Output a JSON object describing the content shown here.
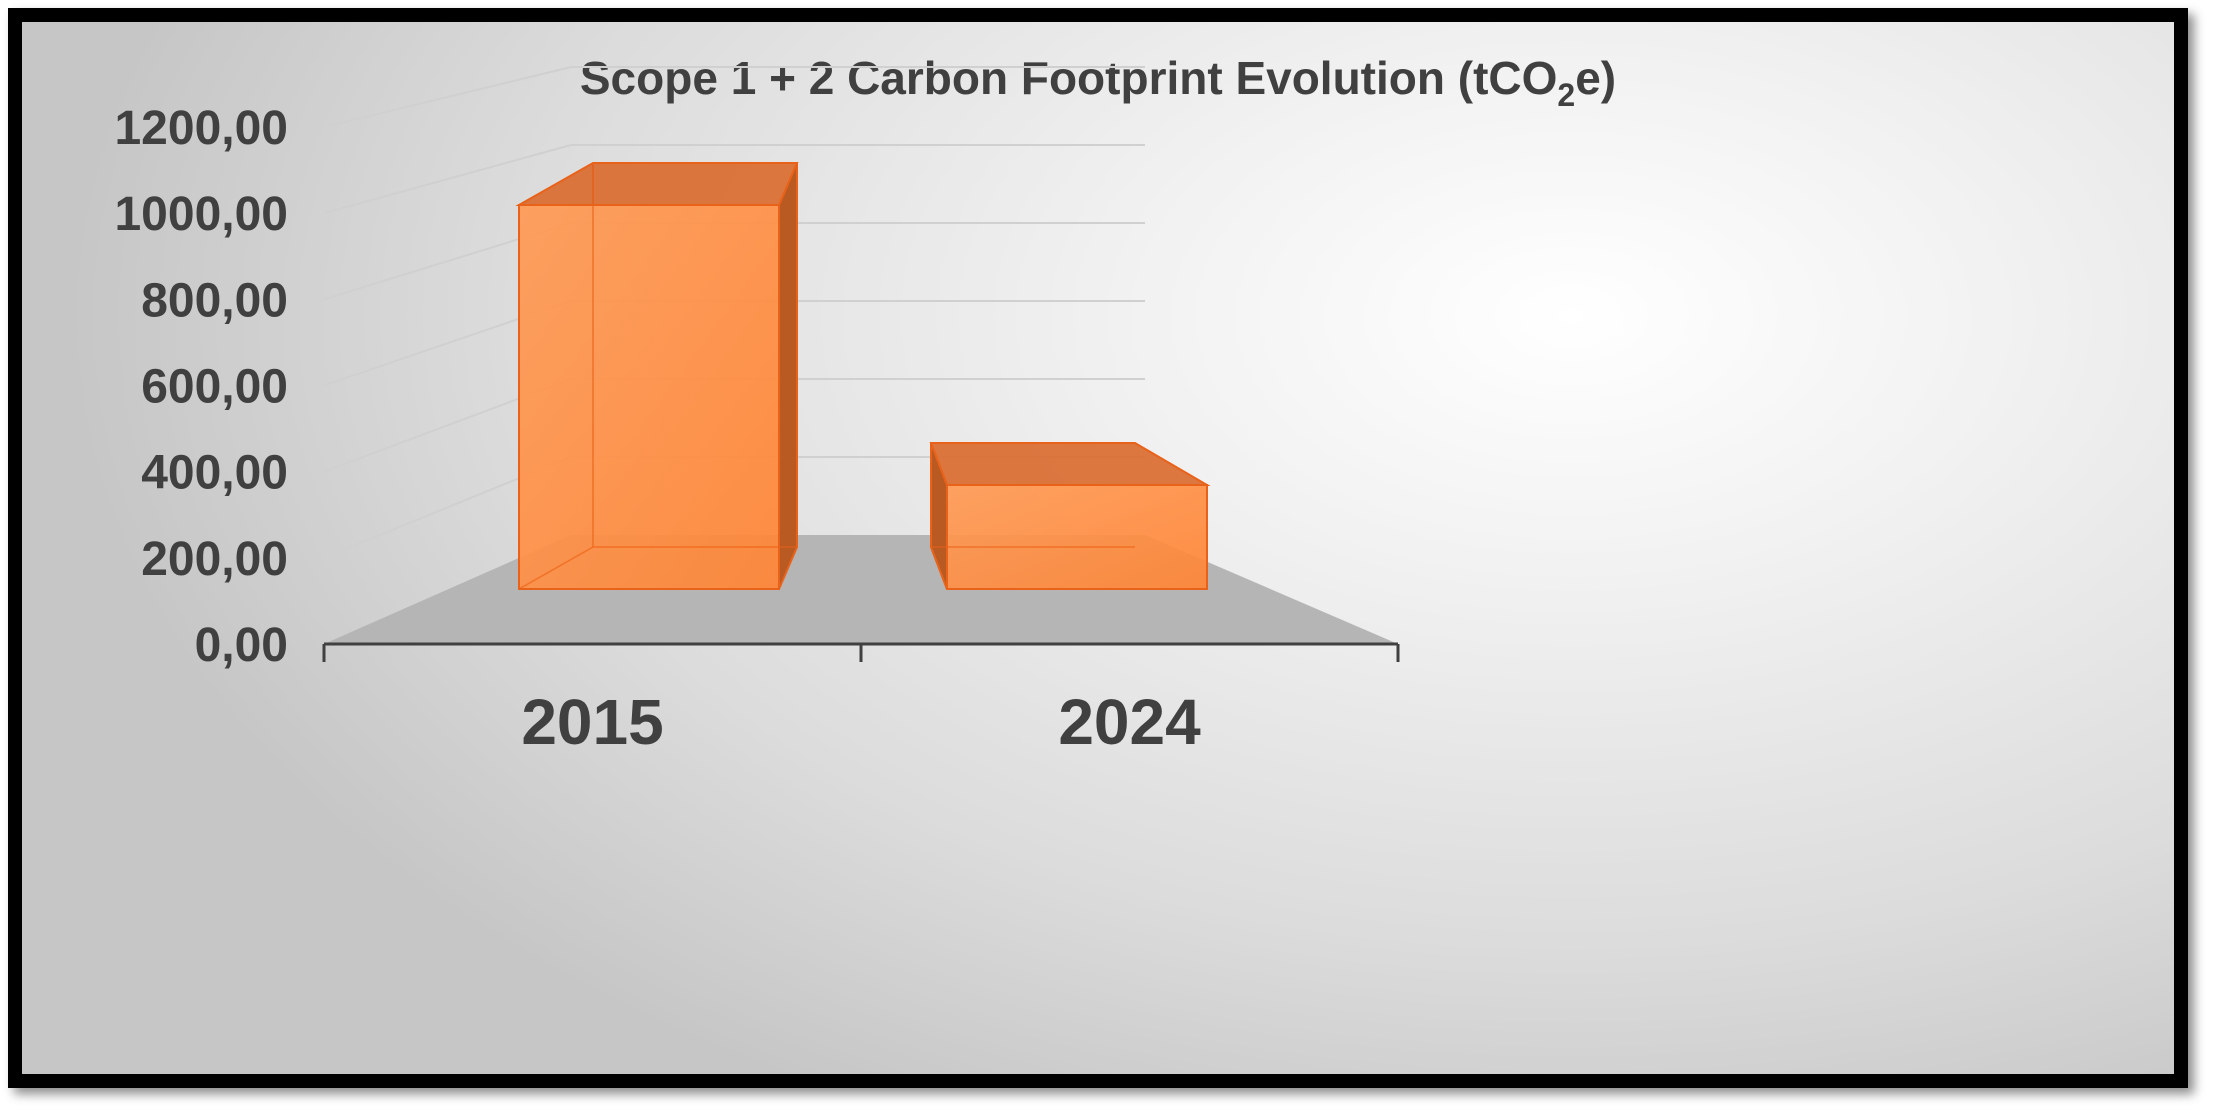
{
  "chart_data": {
    "type": "bar",
    "style": "3d-column",
    "title_parts": {
      "before": "Scope 1 + 2 Carbon Footprint Evolution (tCO",
      "subscript": "2",
      "after": "e)"
    },
    "categories": [
      "2015",
      "2024"
    ],
    "values": [
      960,
      260
    ],
    "ylim": [
      0,
      1200
    ],
    "yticks": [
      "0,00",
      "200,00",
      "400,00",
      "600,00",
      "800,00",
      "1000,00",
      "1200,00"
    ],
    "grid": true,
    "legend": "none",
    "colors": {
      "bar_front": "#ff8c42",
      "bar_side": "#b85a22",
      "bar_top": "#d9692c",
      "bar_edge": "#e8621a",
      "floor": "#b5b5b5",
      "axis": "#404040",
      "grid": "#d0d0d0",
      "text": "#404040"
    }
  }
}
